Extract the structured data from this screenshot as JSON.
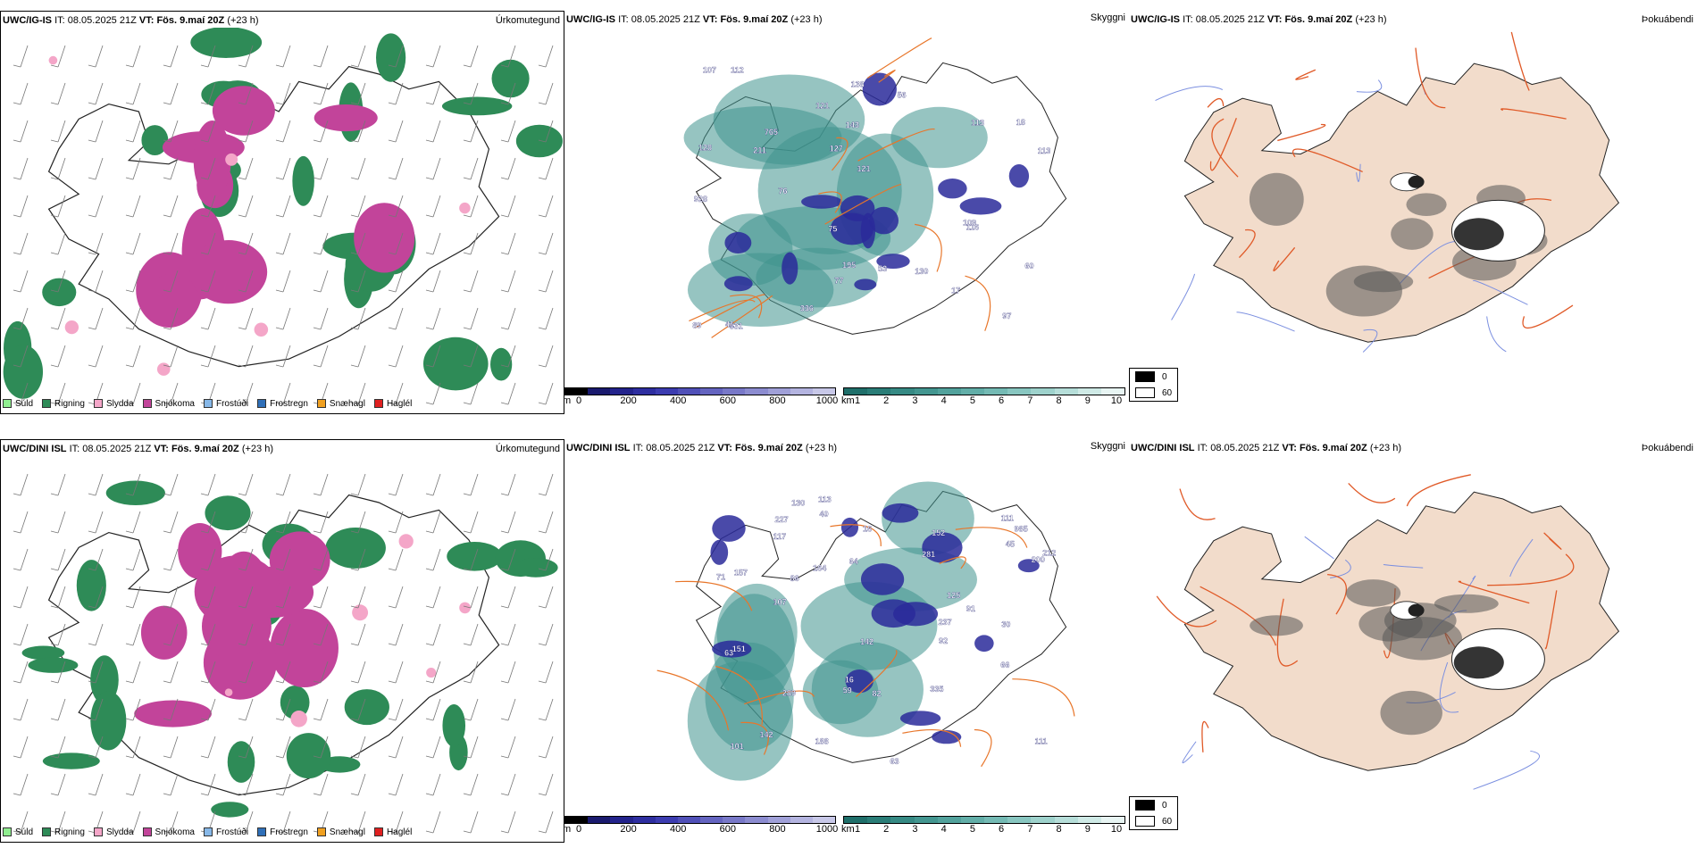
{
  "rows": [
    {
      "model": "UWC/IG-IS",
      "it_label": "IT:",
      "it_value": "08.05.2025 21Z",
      "vt_label": "VT:",
      "vt_value": "Fös. 9.maí 20Z",
      "lead": "(+23 h)"
    },
    {
      "model": "UWC/DINI ISL",
      "it_label": "IT:",
      "it_value": "08.05.2025 21Z",
      "vt_label": "VT:",
      "vt_value": "Fös. 9.maí 20Z",
      "lead": "(+23 h)"
    }
  ],
  "panel_titles": {
    "precip": "Úrkomutegund",
    "cloud": "Skyggni",
    "fog": "Þokuábendi"
  },
  "precip_legend": [
    {
      "label": "Súld",
      "color": "#90ee90"
    },
    {
      "label": "Rigning",
      "color": "#2e8b57"
    },
    {
      "label": "Slydda",
      "color": "#f4a6c8"
    },
    {
      "label": "Snjókoma",
      "color": "#c2449a"
    },
    {
      "label": "Frostúði",
      "color": "#87b8e8"
    },
    {
      "label": "Frostregn",
      "color": "#2f6fb8"
    },
    {
      "label": "Snæhagl",
      "color": "#f0a020"
    },
    {
      "label": "Haglél",
      "color": "#e02020"
    }
  ],
  "cloudbase_scale": {
    "unit": "m",
    "ticks": [
      "0",
      "200",
      "400",
      "600",
      "800",
      "1000"
    ],
    "colors": [
      "#000000",
      "#1a1a6e",
      "#23238c",
      "#2e2ea0",
      "#3c3cb0",
      "#5050b8",
      "#6464c0",
      "#7878c8",
      "#8c8cd0",
      "#a0a0d8",
      "#b4b4e0",
      "#c8c8e8"
    ]
  },
  "visibility_scale": {
    "unit": "km",
    "ticks": [
      "1",
      "2",
      "3",
      "4",
      "5",
      "6",
      "7",
      "8",
      "9",
      "10"
    ],
    "colors": [
      "#1f6f6a",
      "#2a7d77",
      "#368a84",
      "#439690",
      "#52a29c",
      "#62aea8",
      "#74bab4",
      "#88c6c0",
      "#9ed2cc",
      "#b6ded9",
      "#cfeae6",
      "#e8f5f3"
    ]
  },
  "fog_scale": {
    "items": [
      {
        "label": "0",
        "color": "#000000"
      },
      {
        "label": "60",
        "color": "#ffffff"
      }
    ]
  },
  "cloud_labels_top": [
    "121",
    "112",
    "195",
    "113",
    "765",
    "631",
    "109",
    "77",
    "89",
    "17",
    "107",
    "138",
    "128",
    "143",
    "116",
    "113",
    "60",
    "336",
    "18",
    "97",
    "127",
    "211",
    "56",
    "121",
    "41",
    "75",
    "53",
    "928",
    "130",
    "76"
  ],
  "cloud_labels_bottom": [
    "335",
    "111",
    "985",
    "66",
    "237",
    "130",
    "86",
    "82",
    "63",
    "227",
    "281",
    "152",
    "71",
    "64",
    "113",
    "157",
    "117",
    "142",
    "125",
    "164",
    "40",
    "142",
    "101",
    "188",
    "45",
    "30",
    "91",
    "151",
    "200",
    "111",
    "107",
    "92",
    "289",
    "63",
    "59",
    "212",
    "16",
    "16"
  ],
  "colors": {
    "rain": "#2e8b57",
    "snow": "#c2449a",
    "road": "#e8762a",
    "land_fog": "#f2dccb",
    "river": "#7b8fe0"
  }
}
